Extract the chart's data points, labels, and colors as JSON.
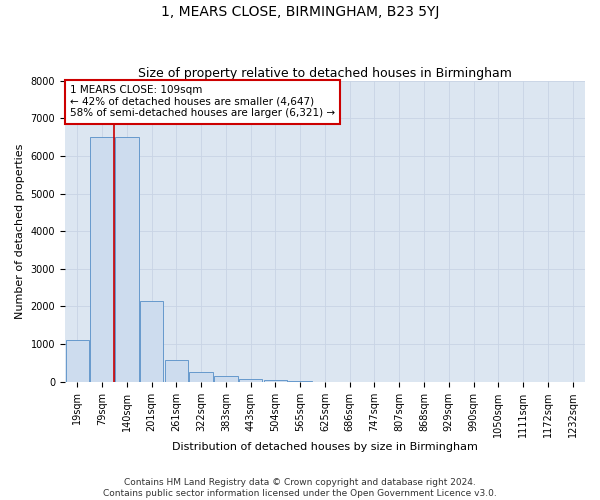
{
  "title": "1, MEARS CLOSE, BIRMINGHAM, B23 5YJ",
  "subtitle": "Size of property relative to detached houses in Birmingham",
  "xlabel": "Distribution of detached houses by size in Birmingham",
  "ylabel": "Number of detached properties",
  "categories": [
    "19sqm",
    "79sqm",
    "140sqm",
    "201sqm",
    "261sqm",
    "322sqm",
    "383sqm",
    "443sqm",
    "504sqm",
    "565sqm",
    "625sqm",
    "686sqm",
    "747sqm",
    "807sqm",
    "868sqm",
    "929sqm",
    "990sqm",
    "1050sqm",
    "1111sqm",
    "1172sqm",
    "1232sqm"
  ],
  "values": [
    1100,
    6500,
    6500,
    2150,
    580,
    270,
    140,
    75,
    40,
    20,
    5,
    0,
    0,
    0,
    0,
    0,
    0,
    0,
    0,
    0,
    0
  ],
  "bar_color": "#cddcee",
  "bar_edge_color": "#6699cc",
  "vline_color": "#cc0000",
  "vline_x_index": 1.5,
  "annotation_text": "1 MEARS CLOSE: 109sqm\n← 42% of detached houses are smaller (4,647)\n58% of semi-detached houses are larger (6,321) →",
  "annotation_box_facecolor": "#ffffff",
  "annotation_box_edgecolor": "#cc0000",
  "ylim": [
    0,
    8000
  ],
  "yticks": [
    0,
    1000,
    2000,
    3000,
    4000,
    5000,
    6000,
    7000,
    8000
  ],
  "grid_color": "#c8d4e4",
  "bg_color": "#dce6f1",
  "footer": "Contains HM Land Registry data © Crown copyright and database right 2024.\nContains public sector information licensed under the Open Government Licence v3.0.",
  "title_fontsize": 10,
  "subtitle_fontsize": 9,
  "xlabel_fontsize": 8,
  "ylabel_fontsize": 8,
  "tick_fontsize": 7,
  "annotation_fontsize": 7.5,
  "footer_fontsize": 6.5
}
